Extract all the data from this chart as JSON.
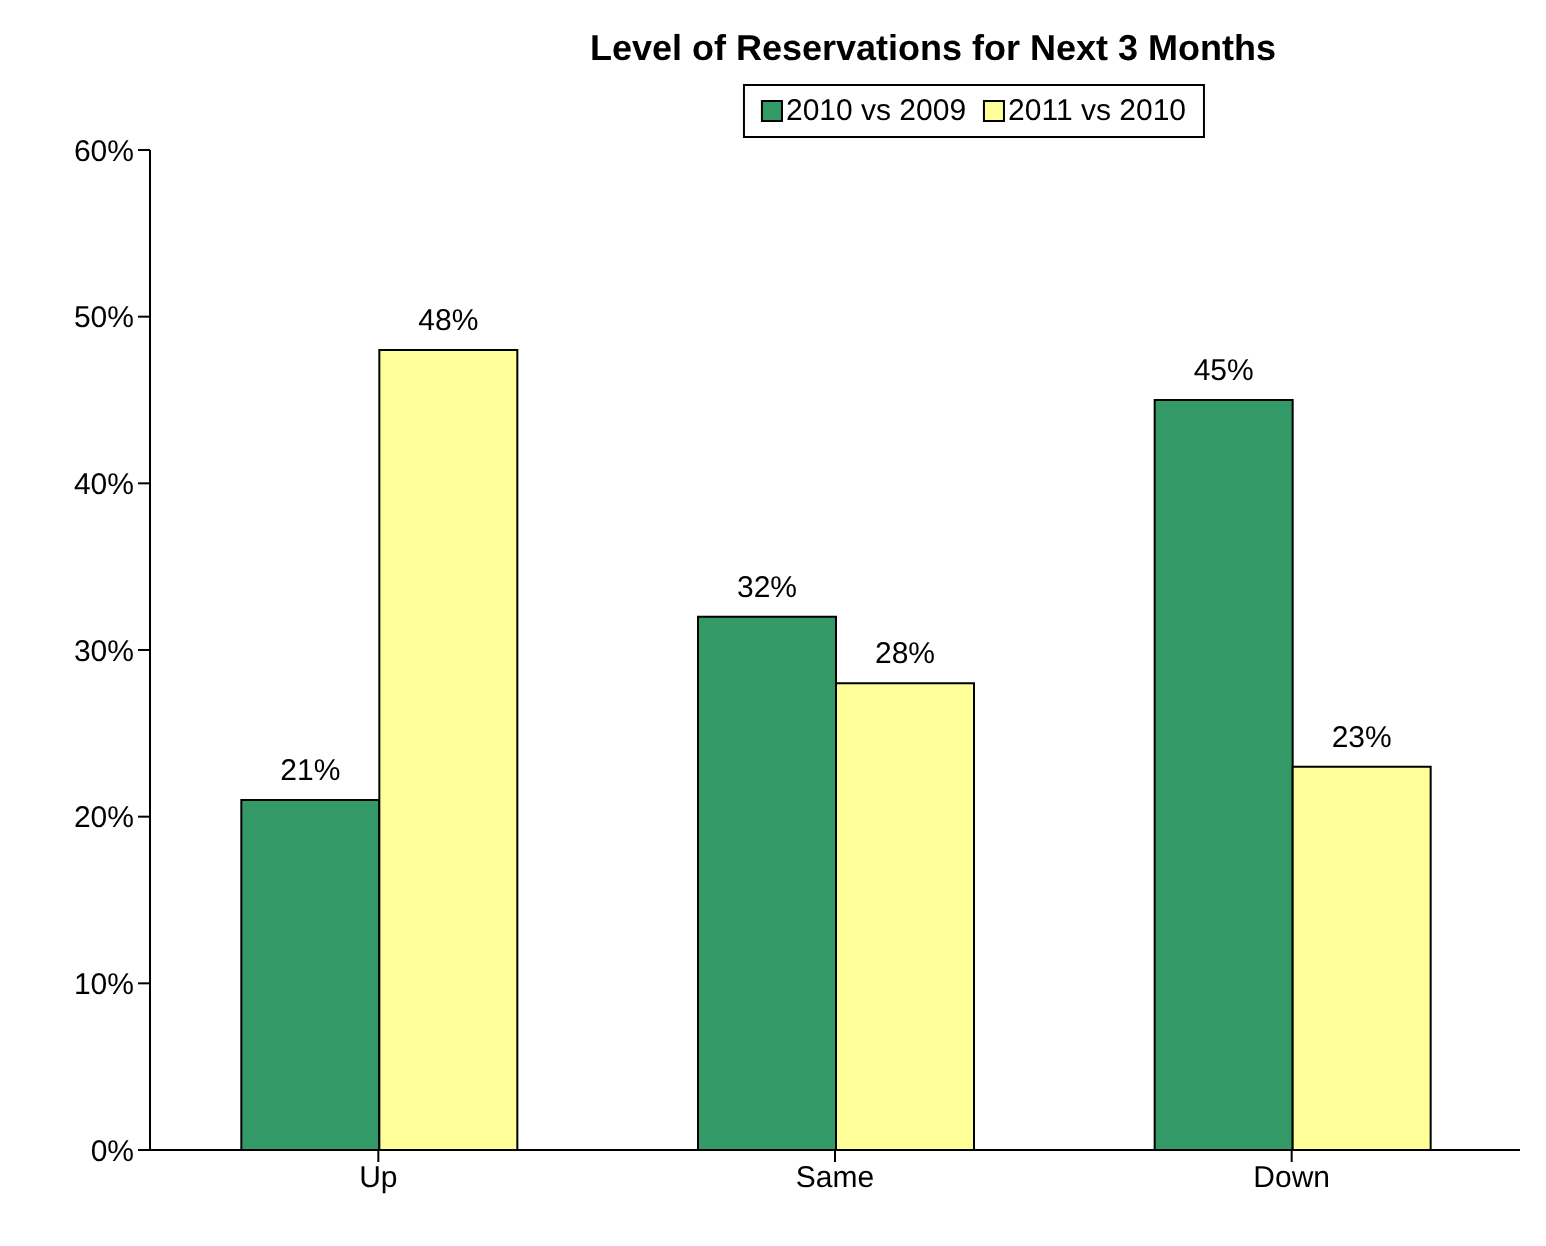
{
  "chart_data": {
    "type": "bar",
    "title": "Level of Reservations for Next 3 Months",
    "categories": [
      "Up",
      "Same",
      "Down"
    ],
    "series": [
      {
        "name": "2010 vs 2009",
        "color": "#339966",
        "values": [
          21,
          32,
          45
        ],
        "value_labels": [
          "21%",
          "32%",
          "45%"
        ]
      },
      {
        "name": "2011 vs 2010",
        "color": "#ffff99",
        "values": [
          48,
          28,
          23
        ],
        "value_labels": [
          "48%",
          "28%",
          "23%"
        ]
      }
    ],
    "ylim": [
      0,
      60
    ],
    "yticks": [
      {
        "value": 0,
        "label": "0%"
      },
      {
        "value": 10,
        "label": "10%"
      },
      {
        "value": 20,
        "label": "20%"
      },
      {
        "value": 30,
        "label": "30%"
      },
      {
        "value": 40,
        "label": "40%"
      },
      {
        "value": 50,
        "label": "50%"
      },
      {
        "value": 60,
        "label": "60%"
      }
    ],
    "grid": false,
    "legend": "top"
  }
}
